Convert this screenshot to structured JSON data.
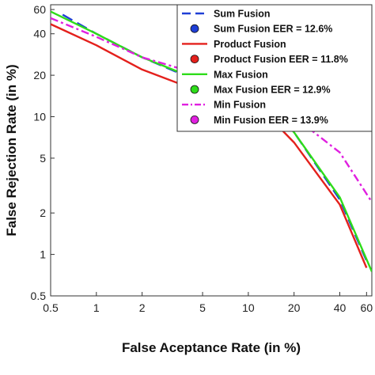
{
  "chart_data": {
    "type": "line",
    "title": "",
    "xlabel": "False Aceptance Rate (in %)",
    "ylabel": "False Rejection Rate (in %)",
    "xscale": "log",
    "yscale": "log",
    "xlim": [
      0.5,
      65
    ],
    "ylim": [
      0.5,
      65
    ],
    "xticks": [
      0.5,
      1,
      2,
      5,
      10,
      20,
      40,
      60
    ],
    "xtick_labels": [
      "0.5",
      "1",
      "2",
      "5",
      "10",
      "20",
      "40",
      "60"
    ],
    "yticks": [
      0.5,
      1,
      2,
      5,
      10,
      20,
      40,
      60
    ],
    "ytick_labels": [
      "0.5",
      "1",
      "2",
      "5",
      "10",
      "20",
      "40",
      "60"
    ],
    "grid": false,
    "legend_position": "top-right",
    "series": [
      {
        "name": "Sum Fusion",
        "color": "#1f3fd6",
        "style": "dashed",
        "x": [
          0.6,
          1,
          2,
          5,
          10,
          12.6,
          20,
          40,
          60
        ],
        "y": [
          55,
          40,
          27,
          17.5,
          14,
          12.6,
          7.7,
          2.5,
          0.9
        ]
      },
      {
        "name": "Sum Fusion EER = 12.6%",
        "color": "#1f3fd6",
        "marker": "circle",
        "x": [
          12.6
        ],
        "y": [
          12.6
        ]
      },
      {
        "name": "Product Fusion",
        "color": "#e4201c",
        "style": "solid",
        "x": [
          0.5,
          1,
          2,
          5,
          10,
          11.8,
          20,
          40,
          60
        ],
        "y": [
          47,
          33,
          22,
          15,
          12.5,
          11.8,
          6.5,
          2.3,
          0.8
        ]
      },
      {
        "name": "Product Fusion EER = 11.8%",
        "color": "#e4201c",
        "marker": "circle",
        "x": [
          11.8
        ],
        "y": [
          11.8
        ]
      },
      {
        "name": "Max Fusion",
        "color": "#2edc1a",
        "style": "solid",
        "x": [
          0.5,
          1,
          2,
          5,
          10,
          12.9,
          20,
          40,
          65
        ],
        "y": [
          58,
          40,
          27,
          18,
          14.5,
          12.9,
          7.7,
          2.6,
          0.75
        ]
      },
      {
        "name": "Max Fusion EER = 12.9%",
        "color": "#2edc1a",
        "marker": "circle",
        "x": [
          12.9
        ],
        "y": [
          12.9
        ]
      },
      {
        "name": "Min Fusion",
        "color": "#e020e0",
        "style": "dashdot",
        "x": [
          0.5,
          1,
          2,
          5,
          10,
          13.9,
          20,
          40,
          65
        ],
        "y": [
          52,
          38,
          27,
          20,
          16,
          13.9,
          10,
          5.5,
          2.4
        ]
      },
      {
        "name": "Min Fusion EER = 13.9%",
        "color": "#e020e0",
        "marker": "circle",
        "x": [
          13.9
        ],
        "y": [
          13.9
        ]
      }
    ],
    "legend": [
      {
        "label": "Sum Fusion",
        "color": "#1f3fd6",
        "kind": "dashed"
      },
      {
        "label": "Sum Fusion EER = 12.6%",
        "color": "#1f3fd6",
        "kind": "marker"
      },
      {
        "label": "Product Fusion",
        "color": "#e4201c",
        "kind": "solid"
      },
      {
        "label": "Product Fusion EER = 11.8%",
        "color": "#e4201c",
        "kind": "marker"
      },
      {
        "label": "Max Fusion",
        "color": "#2edc1a",
        "kind": "solid"
      },
      {
        "label": "Max Fusion EER = 12.9%",
        "color": "#2edc1a",
        "kind": "marker"
      },
      {
        "label": "Min Fusion",
        "color": "#e020e0",
        "kind": "dashdot"
      },
      {
        "label": "Min Fusion EER = 13.9%",
        "color": "#e020e0",
        "kind": "marker"
      }
    ]
  }
}
